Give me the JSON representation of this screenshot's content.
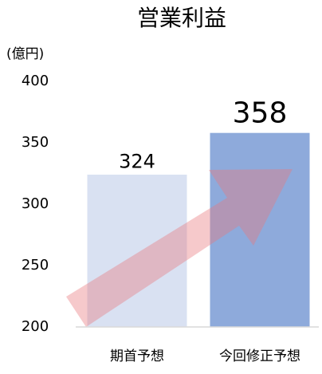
{
  "chart_data": {
    "type": "bar",
    "title": "営業利益",
    "ylabel": "(億円)",
    "categories": [
      "期首予想",
      "今回修正予想"
    ],
    "values": [
      324,
      358
    ],
    "colors": [
      "#d9e1f2",
      "#8eaadb"
    ],
    "ylim": [
      200,
      400
    ],
    "yticks": [
      200,
      250,
      300,
      350,
      400
    ],
    "grid": false
  }
}
